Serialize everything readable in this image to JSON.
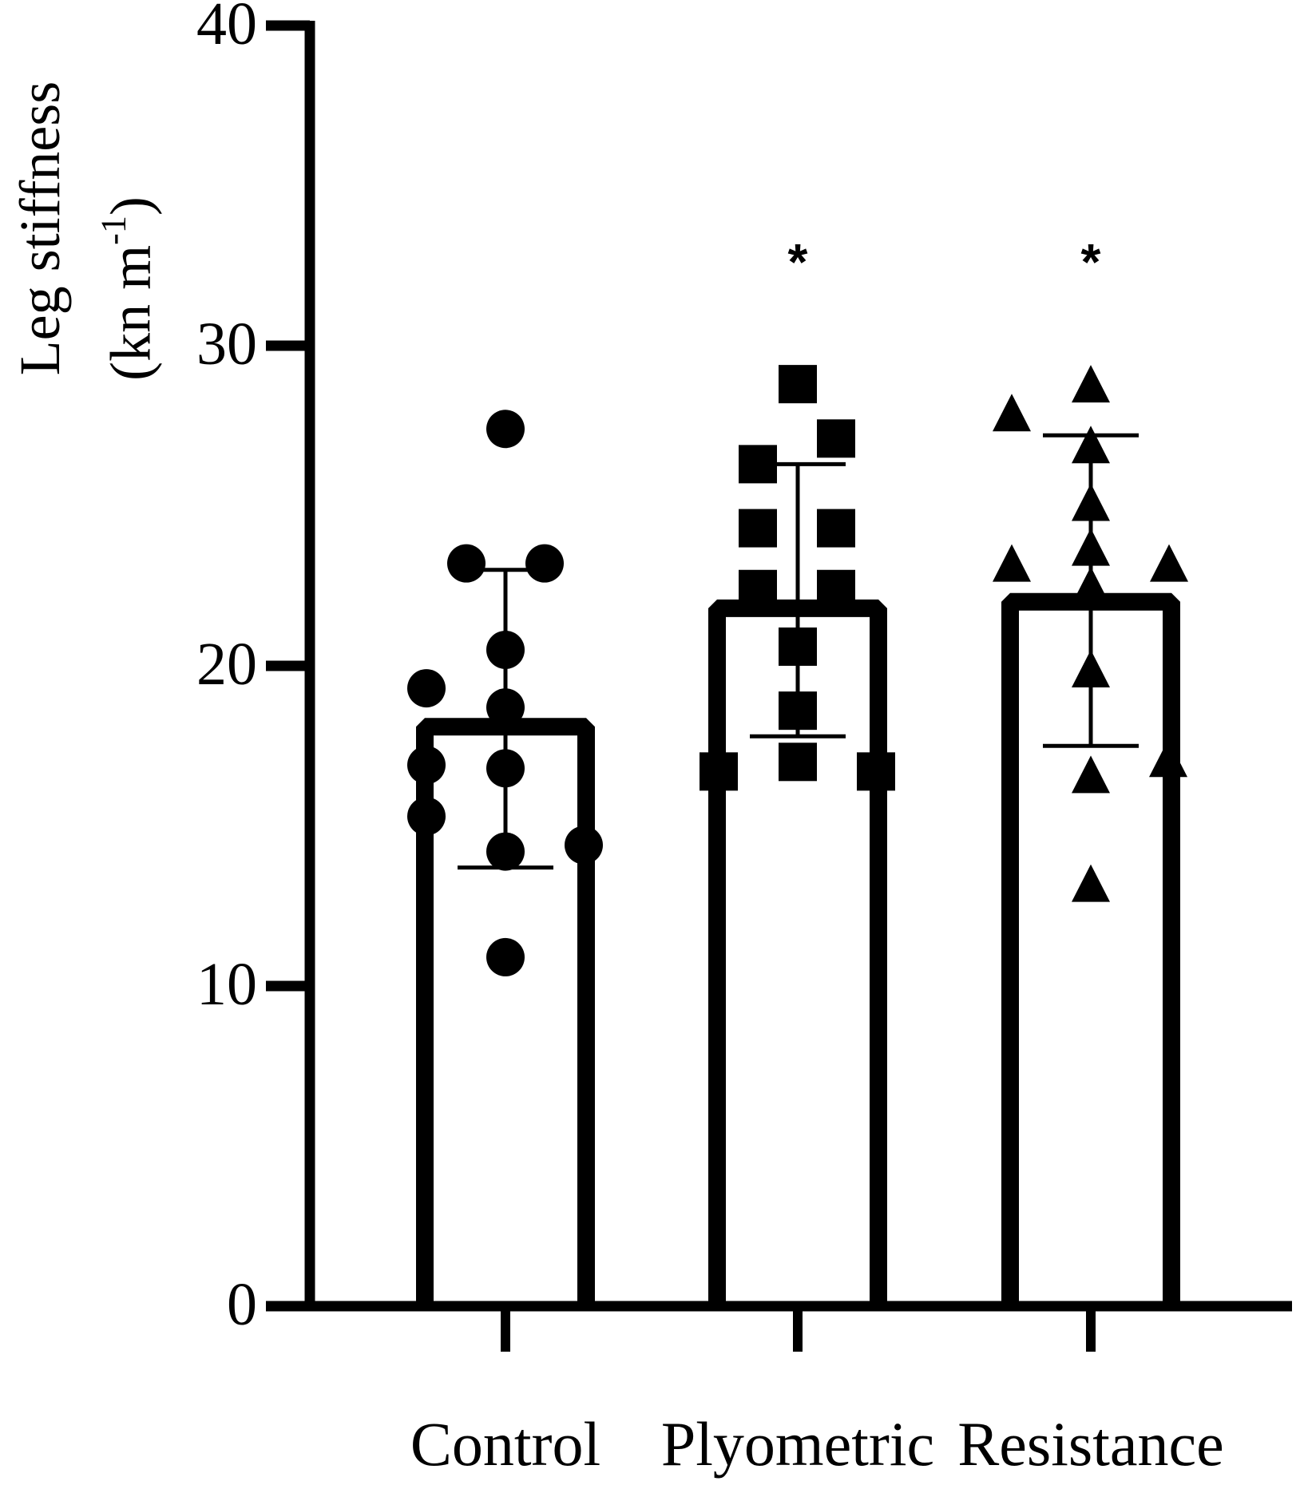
{
  "chart_data": {
    "type": "bar",
    "title": "",
    "xlabel": "",
    "ylabel": "Leg stiffness (kn m-1)",
    "ylabel_line1": "Leg stiffness",
    "ylabel_line2_base": "(kn m",
    "ylabel_line2_sup": "-1",
    "ylabel_line2_end": ")",
    "ylim": [
      0,
      40
    ],
    "yticks": [
      0,
      10,
      20,
      30,
      40
    ],
    "grid": false,
    "legend": null,
    "categories": [
      "Control",
      "Plyometric",
      "Resistance"
    ],
    "bar_style": "open bars, thick black outline, individual points overlaid, mean ± SD error bars",
    "series": [
      {
        "name": "Control",
        "marker": "circle",
        "mean": 18.1,
        "sd_upper": 23.0,
        "sd_lower": 13.7,
        "significance": "",
        "points": [
          27.4,
          23.2,
          23.2,
          20.5,
          19.3,
          18.7,
          16.9,
          16.8,
          15.3,
          14.4,
          14.2,
          10.9
        ]
      },
      {
        "name": "Plyometric",
        "marker": "square",
        "mean": 21.8,
        "sd_upper": 26.3,
        "sd_lower": 17.8,
        "significance": "*",
        "points": [
          28.8,
          27.1,
          26.3,
          24.3,
          24.3,
          22.4,
          22.4,
          20.6,
          18.6,
          17.0,
          16.7,
          16.7
        ]
      },
      {
        "name": "Resistance",
        "marker": "triangle",
        "mean": 22.0,
        "sd_upper": 27.2,
        "sd_lower": 17.5,
        "significance": "*",
        "points": [
          28.8,
          27.9,
          26.9,
          25.1,
          23.7,
          23.2,
          23.2,
          22.5,
          19.9,
          17.1,
          16.6,
          13.2
        ]
      }
    ],
    "annotations": [
      "*",
      "*"
    ]
  },
  "colors": {
    "ink": "#000000",
    "background": "#ffffff"
  }
}
